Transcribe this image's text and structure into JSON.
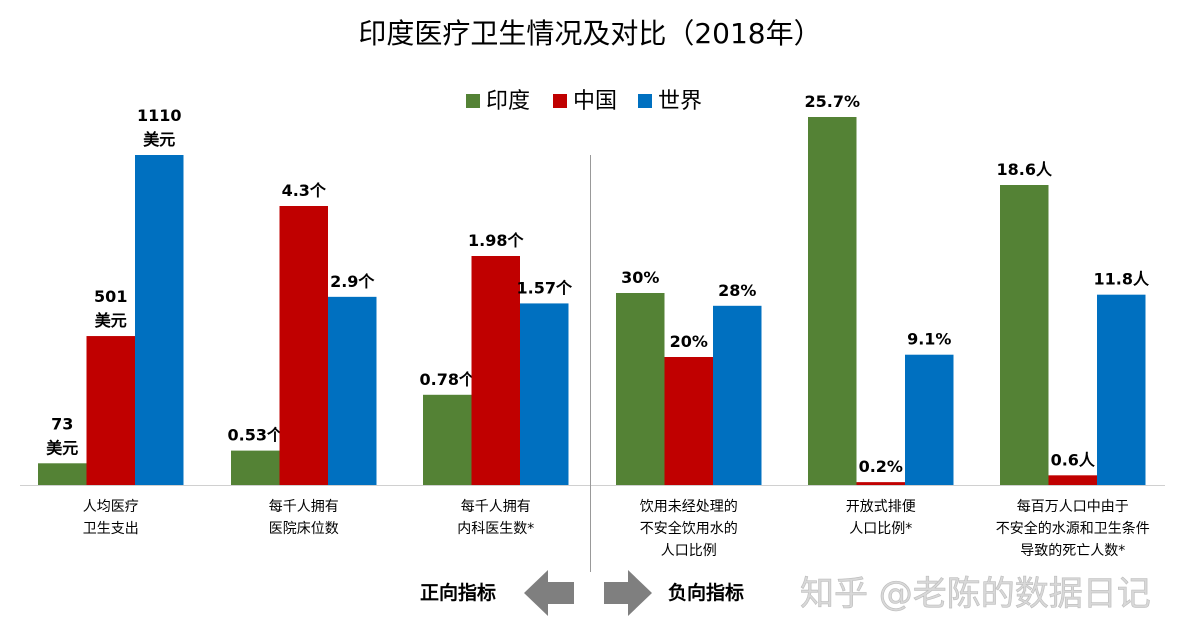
{
  "chart_data": {
    "type": "bar",
    "title": "印度医疗卫生情况及对比（2018年）",
    "legend": {
      "position": "top-center",
      "entries": [
        "印度",
        "中国",
        "世界"
      ]
    },
    "colors": {
      "印度": "#548235",
      "中国": "#C00000",
      "世界": "#0070C0"
    },
    "grid": false,
    "scale": "each category group scaled independently; no value axis",
    "categories": [
      {
        "lines": [
          "人均医疗",
          "卫生支出"
        ],
        "values": [
          73,
          501,
          1110
        ],
        "labels": [
          [
            "73",
            "美元"
          ],
          [
            "501",
            "美元"
          ],
          [
            "1110",
            "美元"
          ]
        ]
      },
      {
        "lines": [
          "每千人拥有",
          "医院床位数"
        ],
        "values": [
          0.53,
          4.3,
          2.9
        ],
        "labels": [
          [
            "0.53个"
          ],
          [
            "4.3个"
          ],
          [
            "2.9个"
          ]
        ]
      },
      {
        "lines": [
          "每千人拥有",
          "内科医生数*"
        ],
        "values": [
          0.78,
          1.98,
          1.57
        ],
        "labels": [
          [
            "0.78个"
          ],
          [
            "1.98个"
          ],
          [
            "1.57个"
          ]
        ]
      },
      {
        "lines": [
          "饮用未经处理的",
          "不安全饮用水的",
          "人口比例"
        ],
        "values": [
          30,
          20,
          28
        ],
        "labels": [
          [
            "30%"
          ],
          [
            "20%"
          ],
          [
            "28%"
          ]
        ]
      },
      {
        "lines": [
          "开放式排便",
          "人口比例*"
        ],
        "values": [
          25.7,
          0.2,
          9.1
        ],
        "labels": [
          [
            "25.7%"
          ],
          [
            "0.2%"
          ],
          [
            "9.1%"
          ]
        ]
      },
      {
        "lines": [
          "每百万人口中由于",
          "不安全的水源和卫生条件",
          "导致的死亡人数*"
        ],
        "values": [
          18.6,
          0.6,
          11.8
        ],
        "labels": [
          [
            "18.6人"
          ],
          [
            "0.6人"
          ],
          [
            "11.8人"
          ]
        ]
      }
    ],
    "series": [
      {
        "name": "印度",
        "values": [
          73,
          0.53,
          0.78,
          30,
          25.7,
          18.6
        ]
      },
      {
        "name": "中国",
        "values": [
          501,
          4.3,
          1.98,
          20,
          0.2,
          0.6
        ]
      },
      {
        "name": "世界",
        "values": [
          1110,
          2.9,
          1.57,
          28,
          9.1,
          11.8
        ]
      }
    ],
    "annotations": {
      "positive": "正向指标",
      "negative": "负向指标"
    }
  },
  "watermark": "知乎 @老陈的数据日记"
}
